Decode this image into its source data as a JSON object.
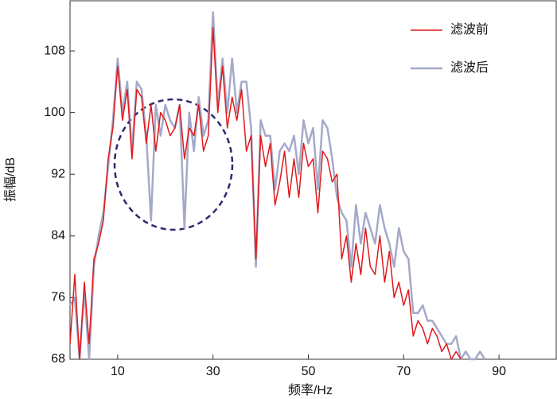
{
  "chart_data": {
    "type": "line",
    "x_label": "频率/Hz",
    "y_label": "振幅/dB",
    "x": [
      0,
      1,
      2,
      3,
      4,
      5,
      6,
      7,
      8,
      9,
      10,
      11,
      12,
      13,
      14,
      15,
      16,
      17,
      18,
      19,
      20,
      21,
      22,
      23,
      24,
      25,
      26,
      27,
      28,
      29,
      30,
      31,
      32,
      33,
      34,
      35,
      36,
      37,
      38,
      39,
      40,
      41,
      42,
      43,
      44,
      45,
      46,
      47,
      48,
      49,
      50,
      51,
      52,
      53,
      54,
      55,
      56,
      57,
      58,
      59,
      60,
      61,
      62,
      63,
      64,
      65,
      66,
      67,
      68,
      69,
      70,
      71,
      72,
      73,
      74,
      75,
      76,
      77,
      78,
      79,
      80,
      81,
      82,
      83,
      84,
      85,
      86,
      87
    ],
    "series": [
      {
        "name": "滤波前",
        "color": "#e0191c",
        "width": 1.5,
        "values": [
          70,
          79,
          68,
          78,
          70,
          81,
          83,
          86,
          94,
          98,
          106,
          99,
          103,
          94,
          103,
          102,
          96,
          101,
          95,
          100,
          99,
          97,
          98,
          101,
          94,
          98,
          97,
          101,
          95,
          97,
          111,
          100,
          106,
          98,
          102,
          99,
          103,
          95,
          97,
          81,
          97,
          93,
          96,
          88,
          91,
          95,
          89,
          94,
          89,
          96,
          93,
          94,
          87,
          95,
          94,
          91,
          92,
          81,
          84,
          78,
          83,
          79,
          85,
          80,
          79,
          84,
          78,
          82,
          76,
          78,
          75,
          77,
          71,
          73,
          72,
          70,
          72,
          71,
          69,
          70,
          68,
          69,
          68,
          null,
          null,
          null,
          null,
          null
        ]
      },
      {
        "name": "滤波后",
        "color": "#a5a9c9",
        "width": 2.5,
        "values": [
          75,
          76,
          68,
          77,
          68,
          80,
          84,
          87,
          93,
          99,
          107,
          100,
          104,
          95,
          104,
          103,
          97,
          86,
          101,
          97,
          101,
          99,
          98,
          101,
          85,
          100,
          95,
          102,
          97,
          99,
          113,
          101,
          107,
          100,
          107,
          100,
          104,
          104,
          98,
          80,
          99,
          97,
          97,
          90,
          95,
          96,
          95,
          97,
          92,
          99,
          96,
          98,
          90,
          99,
          98,
          94,
          89,
          87,
          86,
          80,
          88,
          83,
          87,
          85,
          83,
          88,
          85,
          83,
          80,
          85,
          82,
          81,
          74,
          74,
          75,
          73,
          73,
          72,
          71,
          70,
          70,
          71,
          68,
          69,
          68,
          68,
          69,
          68
        ]
      }
    ],
    "xlim": [
      0,
      102
    ],
    "ylim": [
      68,
      114.5
    ],
    "xticks": [
      10,
      30,
      50,
      70,
      90
    ],
    "yticks": [
      68,
      76,
      84,
      92,
      100,
      108
    ],
    "legend": "top-right"
  }
}
